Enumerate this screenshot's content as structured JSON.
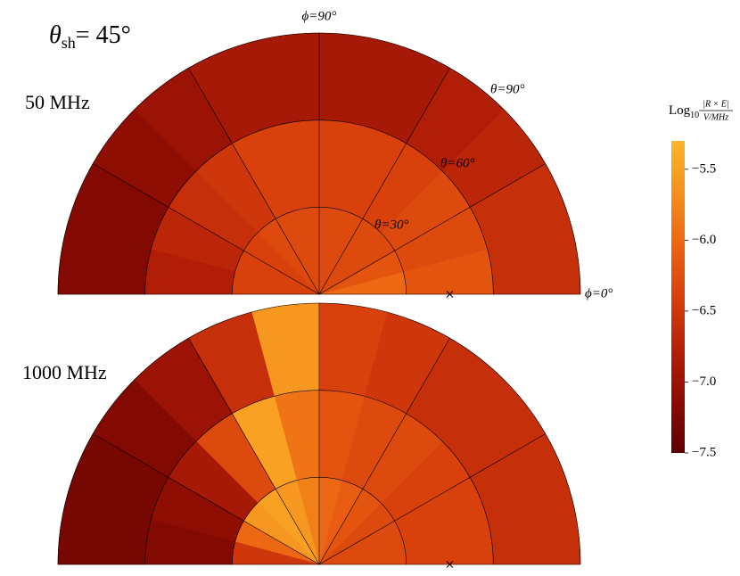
{
  "chart_data": {
    "type": "polar-heatmap",
    "title": {
      "symbol": "θ",
      "subscript": "sh",
      "text": "= 45°"
    },
    "theta_edges": [
      0,
      30,
      60,
      90
    ],
    "phi_edges": [
      0,
      15,
      30,
      45,
      60,
      75,
      90,
      105,
      120,
      135,
      150,
      165,
      180
    ],
    "theta_grid": [
      30,
      60,
      90
    ],
    "phi_grid": [
      0,
      30,
      60,
      90,
      120,
      150,
      180
    ],
    "angle_labels": {
      "phi90": "ϕ=90°",
      "theta90": "θ=90°",
      "theta60": "θ=60°",
      "theta30": "θ=30°",
      "phi0": "ϕ=0°"
    },
    "panels": [
      {
        "label": "50 MHz",
        "marker": {
          "theta": 45,
          "phi": 0
        },
        "values": [
          [
            -6.0,
            -6.2,
            -6.3,
            -6.3,
            -6.3,
            -6.3,
            -6.3,
            -6.3,
            -6.3,
            -6.4,
            -6.4,
            -6.4
          ],
          [
            -6.2,
            -6.3,
            -6.3,
            -6.4,
            -6.4,
            -6.4,
            -6.4,
            -6.4,
            -6.5,
            -6.6,
            -6.7,
            -6.8
          ],
          [
            -6.6,
            -6.6,
            -6.7,
            -6.8,
            -6.9,
            -6.9,
            -6.9,
            -6.9,
            -7.0,
            -7.1,
            -7.2,
            -7.2
          ]
        ]
      },
      {
        "label": "1000 MHz",
        "marker": {
          "theta": 45,
          "phi": 0
        },
        "values": [
          [
            -6.3,
            -6.3,
            -6.3,
            -6.2,
            -6.1,
            -6.0,
            -5.8,
            -5.6,
            -5.5,
            -5.6,
            -6.0,
            -6.5
          ],
          [
            -6.4,
            -6.4,
            -6.4,
            -6.3,
            -6.3,
            -6.2,
            -5.9,
            -5.5,
            -6.3,
            -6.9,
            -7.1,
            -7.2
          ],
          [
            -6.6,
            -6.6,
            -6.6,
            -6.6,
            -6.5,
            -6.4,
            -5.6,
            -6.6,
            -7.0,
            -7.2,
            -7.3,
            -7.3
          ]
        ]
      }
    ],
    "colorbar": {
      "label": {
        "text": "Log",
        "subscript": "10",
        "numerator": "|R × E|",
        "denominator": "V/MHz"
      },
      "clim": [
        -7.5,
        -5.3
      ],
      "ticks": [
        {
          "value": -5.5,
          "label": "−5.5"
        },
        {
          "value": -6,
          "label": "−6.0"
        },
        {
          "value": -6.5,
          "label": "−6.5"
        },
        {
          "value": -7,
          "label": "−7.0"
        },
        {
          "value": -7.5,
          "label": "−7.5"
        }
      ],
      "colormap": [
        "#5e0000",
        "#8a0c02",
        "#b52008",
        "#d8400c",
        "#ec6412",
        "#f5901c",
        "#fdb52a"
      ]
    }
  }
}
